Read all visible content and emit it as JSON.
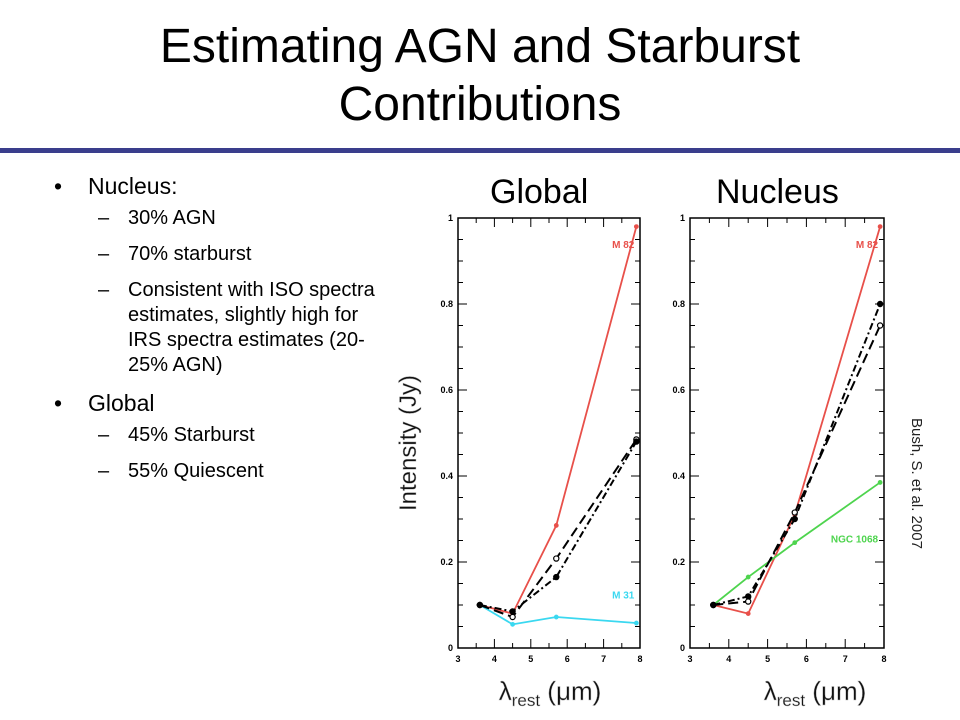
{
  "slide": {
    "title_line1": "Estimating AGN and Starburst",
    "title_line2": "Contributions",
    "title_rule_color": "#3a3e8c",
    "citation": "Bush, S. et al. 2007"
  },
  "bullets": {
    "nucleus_heading": "Nucleus:",
    "nucleus_items": [
      "30% AGN",
      "70% starburst",
      "Consistent with ISO spectra estimates, slightly high for IRS spectra estimates (20-25% AGN)"
    ],
    "global_heading": "Global",
    "global_items": [
      "45% Starburst",
      "55% Quiescent"
    ],
    "dash": "–"
  },
  "chart_data": [
    {
      "type": "line",
      "panel_label": "Global",
      "ylabel": "Intensity (Jy)",
      "xlabel": "λrest (μm)",
      "xlim": [
        3,
        8
      ],
      "ylim": [
        0,
        1
      ],
      "x_ticks": [
        3,
        4,
        5,
        6,
        7,
        8
      ],
      "y_ticks": [
        0,
        0.2,
        0.4,
        0.6,
        0.8,
        1
      ],
      "y_tick_labels": [
        "0",
        "0.2",
        "0.4",
        "0.6",
        "0.8",
        "1"
      ],
      "grid": false,
      "series": [
        {
          "name": "M 82",
          "color": "#e8504a",
          "style": "solid",
          "x": [
            3.6,
            4.5,
            5.7,
            7.9
          ],
          "y": [
            0.1,
            0.08,
            0.285,
            0.98
          ]
        },
        {
          "name": "M 31",
          "color": "#3ad8f0",
          "style": "solid",
          "x": [
            3.6,
            4.5,
            5.7,
            7.9
          ],
          "y": [
            0.1,
            0.055,
            0.072,
            0.058
          ]
        },
        {
          "style": "dash",
          "color": "#000000",
          "x": [
            3.6,
            4.5,
            5.7,
            7.9
          ],
          "y": [
            0.1,
            0.072,
            0.208,
            0.485
          ]
        },
        {
          "style": "dashdot",
          "color": "#000000",
          "x": [
            3.6,
            4.5,
            5.7,
            7.9
          ],
          "y": [
            0.1,
            0.085,
            0.165,
            0.48
          ]
        }
      ]
    },
    {
      "type": "line",
      "panel_label": "Nucleus",
      "xlabel": "λrest (μm)",
      "xlim": [
        3,
        8
      ],
      "ylim": [
        0,
        1
      ],
      "x_ticks": [
        3,
        4,
        5,
        6,
        7,
        8
      ],
      "y_ticks": [
        0,
        0.2,
        0.4,
        0.6,
        0.8,
        1
      ],
      "y_tick_labels": [
        "0",
        "0.2",
        "0.4",
        "0.6",
        "0.8",
        "1"
      ],
      "grid": false,
      "series": [
        {
          "name": "M 82",
          "color": "#e8504a",
          "style": "solid",
          "x": [
            3.6,
            4.5,
            5.7,
            7.9
          ],
          "y": [
            0.1,
            0.08,
            0.31,
            0.98
          ]
        },
        {
          "name": "NGC 1068",
          "color": "#4ed44e",
          "style": "solid",
          "x": [
            3.6,
            4.5,
            5.7,
            7.9
          ],
          "y": [
            0.1,
            0.165,
            0.245,
            0.385
          ]
        },
        {
          "style": "dash",
          "color": "#000000",
          "x": [
            3.6,
            4.5,
            5.7,
            7.9
          ],
          "y": [
            0.1,
            0.108,
            0.315,
            0.75
          ]
        },
        {
          "style": "dashdot",
          "color": "#000000",
          "x": [
            3.6,
            4.5,
            5.7,
            7.9
          ],
          "y": [
            0.1,
            0.12,
            0.3,
            0.8
          ]
        }
      ]
    }
  ]
}
